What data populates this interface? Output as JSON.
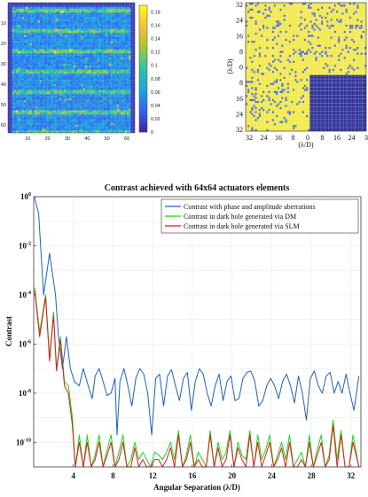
{
  "chart_data": [
    {
      "type": "heatmap",
      "title": "",
      "x_ticks": [
        "10",
        "20",
        "30",
        "40",
        "50",
        "60"
      ],
      "y_ticks": [
        "10",
        "20",
        "30",
        "40",
        "50",
        "60"
      ],
      "colorbar_ticks": [
        "0",
        "0.02",
        "0.04",
        "0.06",
        "0.08",
        "0.1",
        "0.12",
        "0.14",
        "0.16",
        "0.18"
      ],
      "zlim": [
        0,
        0.19
      ],
      "colormap": [
        "#3e26a8",
        "#2f64fa",
        "#1aa5da",
        "#2bc4a4",
        "#a2c931",
        "#f9bd37",
        "#f9fb15"
      ],
      "grid_size": 64
    },
    {
      "type": "heatmap",
      "title": "",
      "xlabel": "(λ/D)",
      "ylabel": "(λ/D)",
      "x_ticks": [
        "32",
        "24",
        "16",
        "8",
        "0",
        "8",
        "16",
        "24",
        "3"
      ],
      "y_ticks": [
        "32",
        "24",
        "16",
        "8",
        "0",
        "8",
        "16",
        "24",
        "32"
      ],
      "colors": {
        "background": "#f3e94a",
        "cells": "#4a6ee0",
        "hole": "#2b2f9e",
        "grid": "#ffffff"
      }
    },
    {
      "type": "line",
      "title": "Contrast achieved with 64x64 actuators elements",
      "xlabel": "Angular Separation (λ/D)",
      "ylabel": "Contrast",
      "xlim": [
        0,
        33
      ],
      "ylim": [
        1e-11,
        1
      ],
      "y_scale": "log",
      "x_ticks": [
        "4",
        "8",
        "12",
        "16",
        "20",
        "24",
        "28",
        "32"
      ],
      "y_ticks": [
        "10^0",
        "10^-2",
        "10^-4",
        "10^-6",
        "10^-8",
        "10^-10"
      ],
      "legend_position": "top-right",
      "series": [
        {
          "name": "Contrast with phase and amplitude aberrations",
          "color": "#1f5fbf",
          "x": [
            0.1,
            0.5,
            1.0,
            1.6,
            2.2,
            2.5,
            2.9,
            3.3,
            3.7,
            4.1,
            4.6,
            5.0,
            5.5,
            5.9,
            6.2,
            6.6,
            7.0,
            7.4,
            7.8,
            8.2,
            8.4,
            8.7,
            9.1,
            9.5,
            9.9,
            10.3,
            10.7,
            11.1,
            11.5,
            11.9,
            12.3,
            12.7,
            13.1,
            13.5,
            13.9,
            14.3,
            14.7,
            15.1,
            15.5,
            15.9,
            16.3,
            16.7,
            17.1,
            17.5,
            17.9,
            18.3,
            18.7,
            19.1,
            19.5,
            19.9,
            20.3,
            20.7,
            21.1,
            21.5,
            21.9,
            22.3,
            22.7,
            23.1,
            23.5,
            23.9,
            24.3,
            24.7,
            25.1,
            25.5,
            25.9,
            26.3,
            26.7,
            27.1,
            27.5,
            27.9,
            28.3,
            28.7,
            29.1,
            29.5,
            29.9,
            30.3,
            30.7,
            31.1,
            31.5,
            31.9,
            32.3,
            32.8
          ],
          "y": [
            0.9,
            0.2,
            0.0001,
            0.005,
            0.0001,
            2e-06,
            1e-07,
            2e-06,
            1e-07,
            3e-08,
            2e-08,
            1e-07,
            2e-08,
            6e-09,
            5e-08,
            1e-07,
            3e-08,
            8e-09,
            1e-08,
            4e-08,
            2e-10,
            3e-08,
            1e-07,
            2e-08,
            3e-09,
            4e-08,
            1e-07,
            6e-08,
            1e-08,
            2e-10,
            4e-08,
            6e-08,
            3e-09,
            5e-08,
            9e-08,
            2e-08,
            5e-09,
            4e-08,
            7e-08,
            2e-09,
            3e-08,
            1e-07,
            6e-08,
            1e-08,
            3e-09,
            2e-08,
            6e-08,
            5e-09,
            3e-08,
            5e-08,
            5e-09,
            6e-09,
            4e-08,
            7e-08,
            8e-08,
            3e-08,
            3e-09,
            5e-09,
            2e-08,
            4e-08,
            2e-08,
            6e-09,
            3e-08,
            6e-08,
            2e-08,
            4e-09,
            5e-08,
            1e-08,
            8e-10,
            4e-08,
            8e-08,
            2e-08,
            1e-08,
            5e-08,
            7e-08,
            1e-08,
            3e-08,
            1e-08,
            6e-08,
            1e-08,
            2e-09,
            5e-08
          ]
        },
        {
          "name": "Contrast in dark hole generated via DM",
          "color": "#19d619",
          "x": [
            0.1,
            0.6,
            1.2,
            1.6,
            2.0,
            2.3,
            2.7,
            3.1,
            3.5,
            3.9,
            4.2,
            4.6,
            5.0,
            5.4,
            5.8,
            6.2,
            6.6,
            7.0,
            7.4,
            7.8,
            8.2,
            8.6,
            9.0,
            9.4,
            9.8,
            10.2,
            10.6,
            11.0,
            11.4,
            11.8,
            12.2,
            12.6,
            13.0,
            13.4,
            13.8,
            14.2,
            14.6,
            15.0,
            15.4,
            15.8,
            16.2,
            16.6,
            17.0,
            17.4,
            17.8,
            18.2,
            18.6,
            19.0,
            19.4,
            19.8,
            20.2,
            20.6,
            21.0,
            21.4,
            21.8,
            22.2,
            22.6,
            23.0,
            23.4,
            23.8,
            24.2,
            24.6,
            25.0,
            25.4,
            25.8,
            26.2,
            26.6,
            27.0,
            27.4,
            27.8,
            28.2,
            28.6,
            29.0,
            29.4,
            29.8,
            30.2,
            30.6,
            31.0,
            31.4,
            31.8,
            32.2,
            32.8
          ],
          "y": [
            0.0002,
            3e-06,
            0.0001,
            3e-07,
            2e-05,
            1e-07,
            2e-06,
            3e-08,
            2e-08,
            1e-09,
            1e-11,
            2e-10,
            1e-11,
            2e-10,
            1e-11,
            3e-11,
            2e-10,
            1e-11,
            5e-11,
            2e-10,
            1e-11,
            4e-11,
            2e-10,
            1e-11,
            2e-11,
            1e-10,
            2e-11,
            4e-11,
            2e-11,
            1e-11,
            4e-11,
            3e-11,
            2e-11,
            4e-11,
            1e-10,
            2e-11,
            3e-10,
            1e-11,
            3e-11,
            2e-10,
            1e-11,
            4e-11,
            2e-11,
            1e-11,
            3e-10,
            1e-11,
            1e-10,
            2e-11,
            4e-11,
            3e-10,
            1e-11,
            1e-10,
            3e-11,
            2e-11,
            3e-10,
            1e-11,
            2e-10,
            2e-11,
            5e-11,
            2e-10,
            1e-11,
            3e-11,
            1e-10,
            2e-11,
            2e-10,
            1e-11,
            2e-11,
            4e-11,
            1e-11,
            2e-10,
            1e-11,
            5e-11,
            2e-10,
            1e-11,
            3e-11,
            8e-10,
            2e-11,
            3e-10,
            1e-11,
            1e-11,
            2e-10,
            1e-11
          ]
        },
        {
          "name": "Contrast in dark hole generated via SLM",
          "color": "#e01a1a",
          "x": [
            0.1,
            0.6,
            1.2,
            1.6,
            2.0,
            2.3,
            2.7,
            3.1,
            3.5,
            3.9,
            4.2,
            4.6,
            5.0,
            5.4,
            5.8,
            6.2,
            6.6,
            7.0,
            7.4,
            7.8,
            8.2,
            8.6,
            9.0,
            9.4,
            9.8,
            10.2,
            10.6,
            11.0,
            11.4,
            11.8,
            12.2,
            12.6,
            13.0,
            13.4,
            13.8,
            14.2,
            14.6,
            15.0,
            15.4,
            15.8,
            16.2,
            16.6,
            17.0,
            17.4,
            17.8,
            18.2,
            18.6,
            19.0,
            19.4,
            19.8,
            20.2,
            20.6,
            21.0,
            21.4,
            21.8,
            22.2,
            22.6,
            23.0,
            23.4,
            23.8,
            24.2,
            24.6,
            25.0,
            25.4,
            25.8,
            26.2,
            26.6,
            27.0,
            27.4,
            27.8,
            28.2,
            28.6,
            29.0,
            29.4,
            29.8,
            30.2,
            30.6,
            31.0,
            31.4,
            31.8,
            32.2,
            32.8
          ],
          "y": [
            0.00015,
            2e-06,
            8e-05,
            2e-07,
            1.5e-05,
            8e-08,
            1.5e-06,
            2e-08,
            1e-08,
            5e-10,
            1e-11,
            1e-10,
            1e-11,
            1e-10,
            1e-11,
            2e-11,
            1e-10,
            1e-11,
            3e-11,
            1e-10,
            1e-11,
            2e-11,
            1e-10,
            1e-11,
            1e-11,
            6e-11,
            1e-11,
            2e-11,
            1e-11,
            1e-11,
            2e-11,
            2e-11,
            1e-11,
            2e-11,
            6e-11,
            1e-11,
            2e-10,
            1e-11,
            2e-11,
            1e-10,
            1e-11,
            2e-11,
            1e-11,
            1e-11,
            2e-10,
            1e-11,
            6e-11,
            1e-11,
            2e-11,
            2e-10,
            1e-11,
            6e-11,
            2e-11,
            1e-11,
            2e-10,
            1e-11,
            1e-10,
            1e-11,
            3e-11,
            1e-10,
            1e-11,
            2e-11,
            6e-11,
            1e-11,
            1e-10,
            1e-11,
            1e-11,
            2e-11,
            1e-11,
            1e-10,
            1e-11,
            3e-11,
            1e-10,
            1e-11,
            2e-11,
            5e-10,
            1e-11,
            2e-10,
            1e-11,
            1e-11,
            1e-10,
            1e-11
          ]
        }
      ]
    }
  ]
}
